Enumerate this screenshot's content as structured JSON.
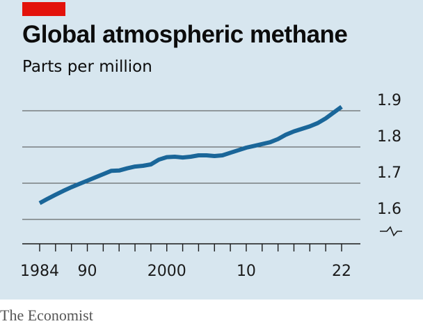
{
  "header": {
    "title": "Global atmospheric methane",
    "subtitle": "Parts per million"
  },
  "footer": {
    "source": "The Economist"
  },
  "colors": {
    "line": "#1a6699",
    "accent": "#e3120b",
    "background": "#d7e6ef",
    "grid": "#4a4a4a"
  },
  "chart_data": {
    "type": "line",
    "title": "Global atmospheric methane",
    "subtitle": "Parts per million",
    "xlabel": "",
    "ylabel": "Parts per million",
    "xlim": [
      1984,
      2022
    ],
    "ylim": [
      1.55,
      1.9
    ],
    "x_ticks": [
      1984,
      1986,
      1988,
      1990,
      1992,
      1994,
      1996,
      1998,
      2000,
      2002,
      2004,
      2006,
      2008,
      2010,
      2012,
      2014,
      2016,
      2018,
      2020,
      2022
    ],
    "x_tick_labels": [
      {
        "x": 1984,
        "label": "1984"
      },
      {
        "x": 1990,
        "label": "90"
      },
      {
        "x": 2000,
        "label": "2000"
      },
      {
        "x": 2010,
        "label": "10"
      },
      {
        "x": 2022,
        "label": "22"
      }
    ],
    "y_ticks": [
      1.6,
      1.7,
      1.8,
      1.9
    ],
    "y_tick_labels": [
      "1.6",
      "1.7",
      "1.8",
      "1.9"
    ],
    "axis_break": true,
    "grid": true,
    "series": [
      {
        "x": [
          1984,
          1985,
          1986,
          1987,
          1988,
          1989,
          1990,
          1991,
          1992,
          1993,
          1994,
          1995,
          1996,
          1997,
          1998,
          1999,
          2000,
          2001,
          2002,
          2003,
          2004,
          2005,
          2006,
          2007,
          2008,
          2009,
          2010,
          2011,
          2012,
          2013,
          2014,
          2015,
          2016,
          2017,
          2018,
          2019,
          2020,
          2021,
          2022
        ],
        "y": [
          1.645,
          1.657,
          1.668,
          1.679,
          1.689,
          1.698,
          1.707,
          1.716,
          1.725,
          1.734,
          1.735,
          1.741,
          1.746,
          1.748,
          1.752,
          1.765,
          1.772,
          1.773,
          1.771,
          1.773,
          1.777,
          1.777,
          1.775,
          1.777,
          1.784,
          1.791,
          1.798,
          1.803,
          1.808,
          1.813,
          1.822,
          1.834,
          1.843,
          1.85,
          1.857,
          1.866,
          1.879,
          1.895,
          1.911
        ]
      }
    ]
  }
}
